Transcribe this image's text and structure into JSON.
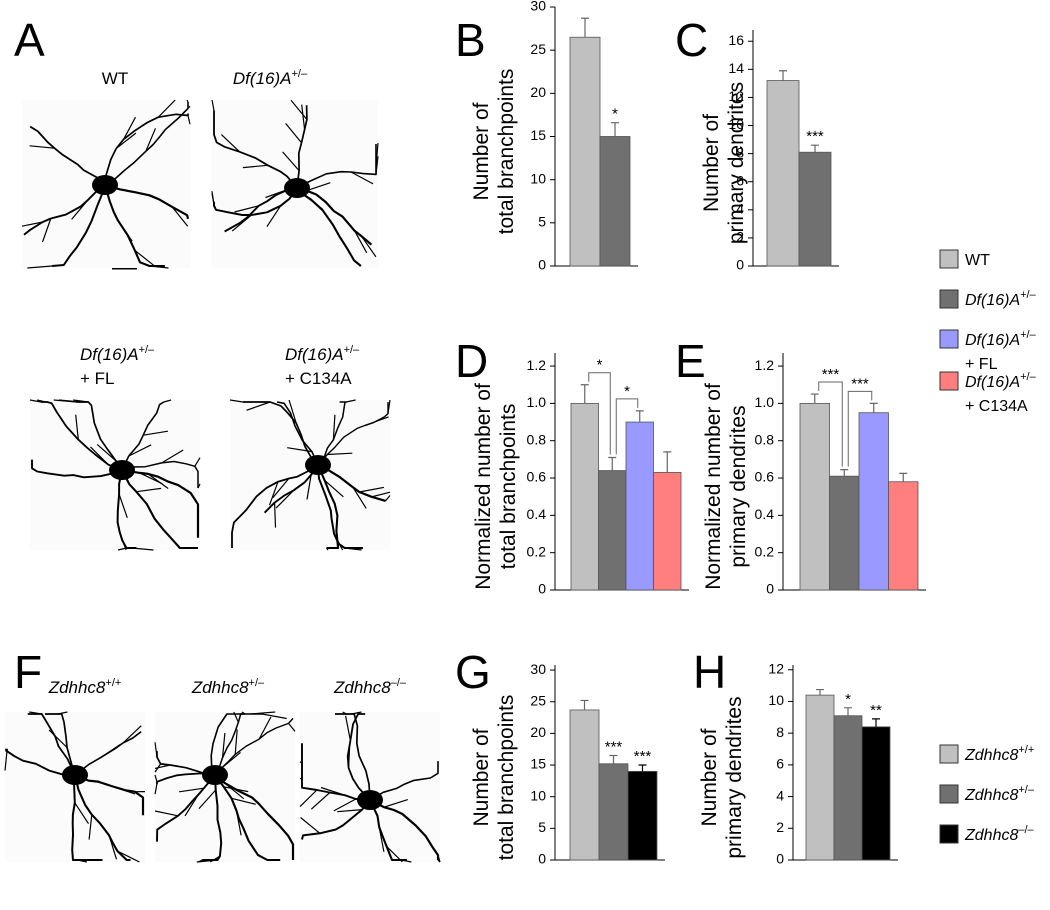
{
  "panel_letters": [
    "A",
    "B",
    "C",
    "D",
    "E",
    "F",
    "G",
    "H"
  ],
  "images_A": [
    {
      "base": "WT"
    },
    {
      "base": "Df(16)A",
      "sup": "+/–",
      "italic": true
    },
    {
      "base": "Df(16)A",
      "sup": "+/–",
      "italic": true,
      "extra": "+ FL"
    },
    {
      "base": "Df(16)A",
      "sup": "+/–",
      "italic": true,
      "extra": "+ C134A"
    }
  ],
  "images_F": [
    {
      "base": "Zdhhc8",
      "sup": "+/+",
      "italic": true
    },
    {
      "base": "Zdhhc8",
      "sup": "+/–",
      "italic": true
    },
    {
      "base": "Zdhhc8",
      "sup": "–/–",
      "italic": true
    }
  ],
  "legend_1": [
    {
      "base": "WT",
      "color": "#c0c0c0"
    },
    {
      "base": "Df(16)A",
      "sup": "+/–",
      "italic": true,
      "color": "#707070"
    },
    {
      "base": "Df(16)A",
      "sup": "+/–",
      "italic": true,
      "extra": "+ FL",
      "color": "#9999ff"
    },
    {
      "base": "Df(16)A",
      "sup": "+/–",
      "italic": true,
      "extra": "+ C134A",
      "color": "#ff7f7f"
    }
  ],
  "legend_2": [
    {
      "base": "Zdhhc8",
      "sup": "+/+",
      "italic": true,
      "color": "#c0c0c0"
    },
    {
      "base": "Zdhhc8",
      "sup": "+/–",
      "italic": true,
      "color": "#707070"
    },
    {
      "base": "Zdhhc8",
      "sup": "–/–",
      "italic": true,
      "color": "#000000"
    }
  ],
  "chart_data": [
    {
      "type": "bar",
      "ylabel": [
        "Number of",
        "total branchpoints"
      ],
      "values": [
        26.5,
        15.0
      ],
      "errors": [
        2.2,
        1.6
      ],
      "colors": [
        "#c0c0c0",
        "#707070"
      ],
      "stars": [
        null,
        "*"
      ],
      "ylim": [
        0,
        30
      ],
      "yticks": [
        0,
        5,
        10,
        15,
        20,
        25,
        30
      ]
    },
    {
      "type": "bar",
      "ylabel": [
        "Number of",
        "primary dendrites"
      ],
      "values": [
        13.2,
        8.1
      ],
      "errors": [
        0.7,
        0.5
      ],
      "colors": [
        "#c0c0c0",
        "#707070"
      ],
      "stars": [
        null,
        "***"
      ],
      "ylim": [
        0,
        16.8
      ],
      "yticks": [
        0,
        2,
        4,
        6,
        8,
        10,
        12,
        14,
        16
      ]
    },
    {
      "type": "bar",
      "ylabel": [
        "Normalized number of",
        "total branchpoints"
      ],
      "values": [
        1.0,
        0.64,
        0.9,
        0.63
      ],
      "errors": [
        0.1,
        0.07,
        0.06,
        0.11
      ],
      "colors": [
        "#c0c0c0",
        "#707070",
        "#9999ff",
        "#ff7f7f"
      ],
      "brackets": [
        "*",
        "*"
      ],
      "ylim": [
        0,
        1.27
      ],
      "yticks": [
        0,
        0.2,
        0.4,
        0.6,
        0.8,
        {
          "value": 1,
          "label": "1.0"
        },
        1.2
      ]
    },
    {
      "type": "bar",
      "ylabel": [
        "Normalized number of",
        "primary dendrites"
      ],
      "values": [
        1.0,
        0.61,
        0.95,
        0.58
      ],
      "errors": [
        0.05,
        0.035,
        0.05,
        0.045
      ],
      "colors": [
        "#c0c0c0",
        "#707070",
        "#9999ff",
        "#ff7f7f"
      ],
      "brackets": [
        "***",
        "***"
      ],
      "ylim": [
        0,
        1.27
      ],
      "yticks": [
        0,
        0.2,
        0.4,
        0.6,
        0.8,
        {
          "value": 1,
          "label": "1.0"
        },
        1.2
      ]
    },
    {
      "type": "bar",
      "ylabel": [
        "Number of",
        "total branchpoints"
      ],
      "values": [
        23.7,
        15.2,
        14.0
      ],
      "errors": [
        1.5,
        1.3,
        1.0
      ],
      "colors": [
        "#c0c0c0",
        "#707070",
        "#000000"
      ],
      "stars": [
        null,
        "***",
        "***"
      ],
      "ylim": [
        0,
        30.8
      ],
      "yticks": [
        0,
        5,
        10,
        15,
        20,
        25,
        30
      ]
    },
    {
      "type": "bar",
      "ylabel": [
        "Number of",
        "primary dendrites"
      ],
      "values": [
        10.4,
        9.1,
        8.4
      ],
      "errors": [
        0.35,
        0.5,
        0.5
      ],
      "colors": [
        "#c0c0c0",
        "#707070",
        "#000000"
      ],
      "stars": [
        null,
        "*",
        "**"
      ],
      "ylim": [
        0,
        12.3
      ],
      "yticks": [
        0,
        2,
        4,
        6,
        8,
        10,
        12
      ]
    }
  ]
}
